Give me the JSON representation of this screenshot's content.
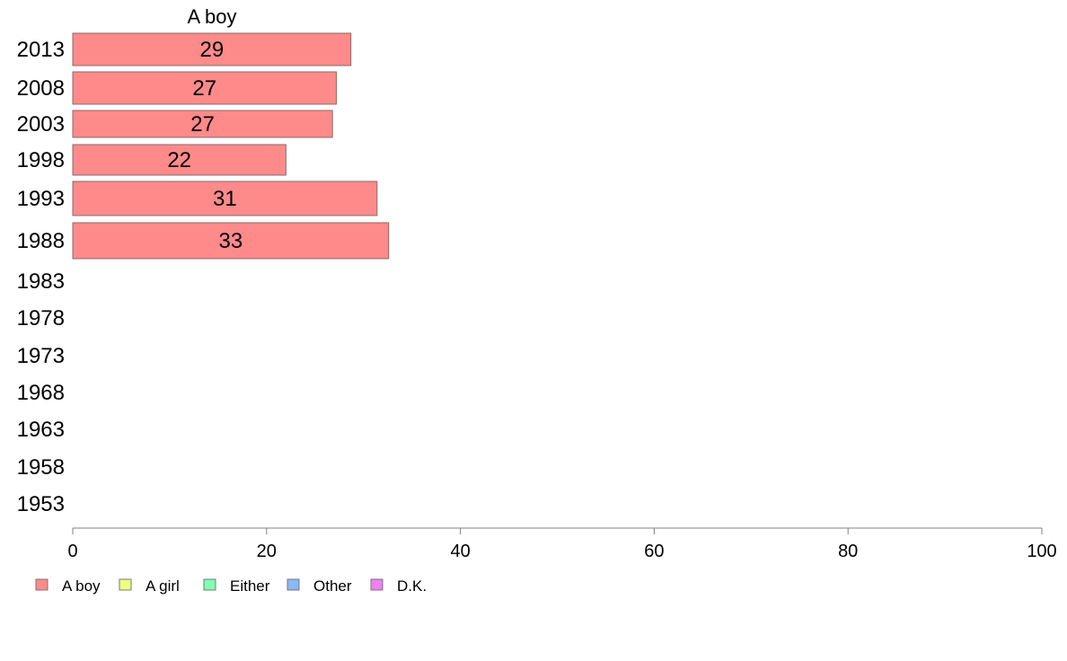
{
  "chart_data": {
    "type": "bar",
    "orientation": "horizontal",
    "stacked": true,
    "title": "A boy",
    "categories": [
      "2013",
      "2008",
      "2003",
      "1998",
      "1993",
      "1988",
      "1983",
      "1978",
      "1973",
      "1968",
      "1963",
      "1958",
      "1953"
    ],
    "series": [
      {
        "name": "A boy",
        "color": "#ff8a8a",
        "values": [
          28.7,
          27.2,
          26.8,
          22.0,
          31.4,
          32.6,
          null,
          null,
          null,
          null,
          null,
          null,
          null
        ],
        "labels": [
          "29",
          "27",
          "27",
          "22",
          "31",
          "33",
          "",
          "",
          "",
          "",
          "",
          "",
          ""
        ]
      }
    ],
    "legend": [
      {
        "label": "A boy",
        "color": "#ff8a8a"
      },
      {
        "label": "A girl",
        "color": "#eeff80"
      },
      {
        "label": "Either",
        "color": "#80ffb2"
      },
      {
        "label": "Other",
        "color": "#8ab8f5"
      },
      {
        "label": "D.K.",
        "color": "#ee80f5"
      }
    ],
    "legend_position": "bottom-left",
    "xlim": [
      0,
      100
    ],
    "xticks": [
      "0",
      "20",
      "40",
      "60",
      "80",
      "100"
    ],
    "xlabel": "",
    "ylabel": "",
    "grid": false
  }
}
